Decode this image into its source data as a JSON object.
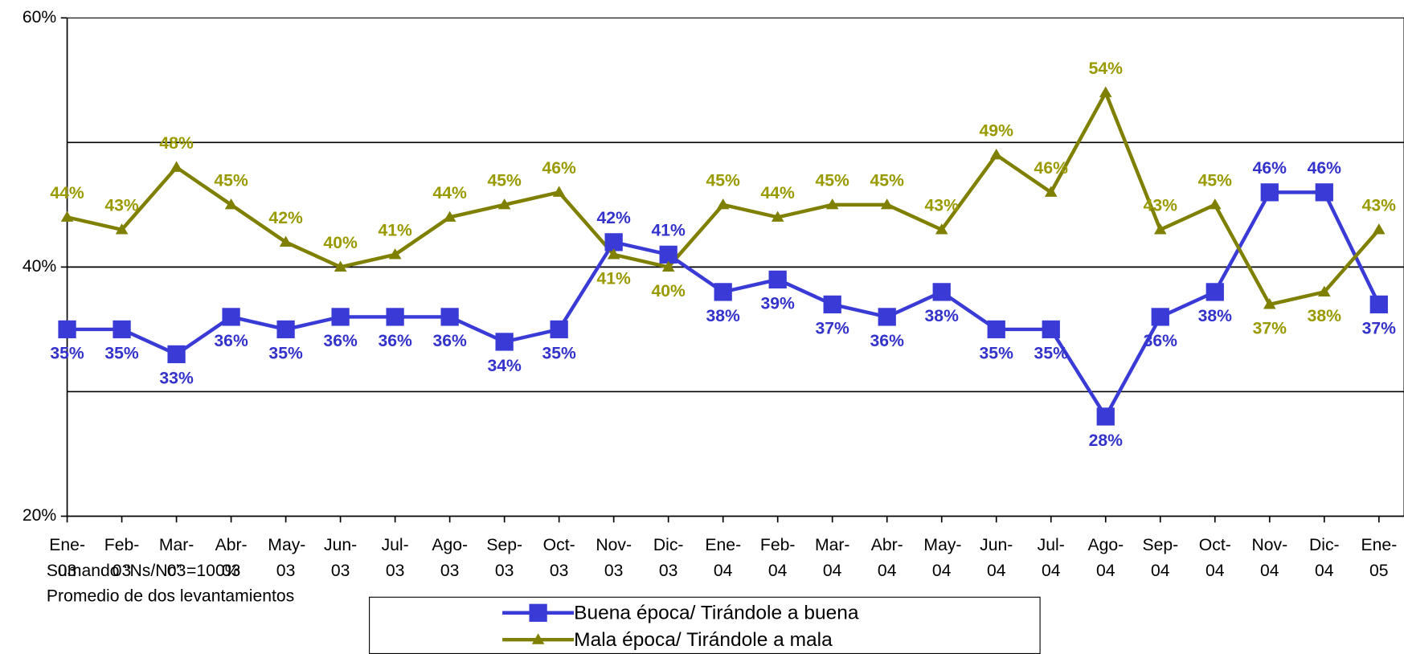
{
  "chart_data": {
    "type": "line",
    "categories": [
      "Ene- 03",
      "Feb- 03",
      "Mar- 03",
      "Abr- 03",
      "May- 03",
      "Jun- 03",
      "Jul- 03",
      "Ago- 03",
      "Sep- 03",
      "Oct- 03",
      "Nov- 03",
      "Dic- 03",
      "Ene- 04",
      "Feb- 04",
      "Mar- 04",
      "Abr- 04",
      "May- 04",
      "Jun- 04",
      "Jul- 04",
      "Ago- 04",
      "Sep- 04",
      "Oct- 04",
      "Nov- 04",
      "Dic- 04",
      "Ene- 05"
    ],
    "series": [
      {
        "name": "Buena época/ Tirándole a buena",
        "color": "#3a3ad6",
        "label_color": "#3333cc",
        "marker": "square",
        "values": [
          35,
          35,
          33,
          36,
          35,
          36,
          36,
          36,
          34,
          35,
          42,
          41,
          38,
          39,
          37,
          36,
          38,
          35,
          35,
          28,
          36,
          38,
          46,
          46,
          37
        ],
        "value_labels": [
          "35%",
          "35%",
          "33%",
          "36%",
          "35%",
          "36%",
          "36%",
          "36%",
          "34%",
          "35%",
          "42%",
          "41%",
          "38%",
          "39%",
          "37%",
          "36%",
          "38%",
          "35%",
          "35%",
          "28%",
          "36%",
          "38%",
          "46%",
          "46%",
          "37%"
        ]
      },
      {
        "name": "Mala época/ Tirándole a mala",
        "color": "#7f7f00",
        "label_color": "#999900",
        "marker": "triangle",
        "values": [
          44,
          43,
          48,
          45,
          42,
          40,
          41,
          44,
          45,
          46,
          41,
          40,
          45,
          44,
          45,
          45,
          43,
          49,
          46,
          54,
          43,
          45,
          37,
          38,
          43
        ],
        "value_labels": [
          "44%",
          "43%",
          "48%",
          "45%",
          "42%",
          "40%",
          "41%",
          "44%",
          "45%",
          "46%",
          "41%",
          "40%",
          "45%",
          "44%",
          "45%",
          "45%",
          "43%",
          "49%",
          "46%",
          "54%",
          "43%",
          "45%",
          "37%",
          "38%",
          "43%"
        ]
      }
    ],
    "ylim": [
      20,
      60
    ],
    "yticks": [
      {
        "value": 20,
        "label": "20%"
      },
      {
        "value": 40,
        "label": "40%"
      },
      {
        "value": 60,
        "label": "60%"
      }
    ],
    "gridlines": [
      30,
      40,
      50
    ],
    "notes": [
      "Sumando “Ns/Nc” =100%",
      "Promedio de dos levantamientos"
    ]
  }
}
